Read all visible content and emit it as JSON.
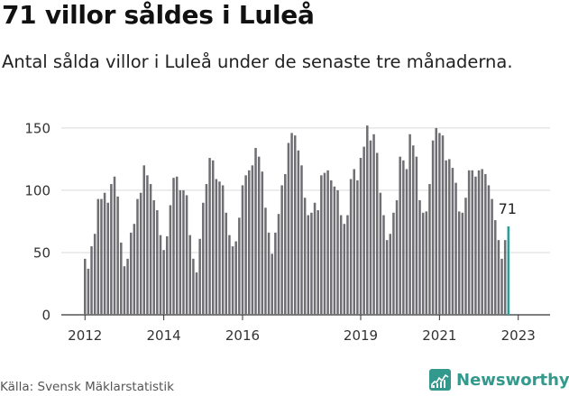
{
  "header": {
    "title": "71 villor såldes i Luleå",
    "subtitle": "Antal sålda villor i Luleå under de senaste tre månaderna."
  },
  "footer": {
    "source": "Källa: Svensk Mäklarstatistik",
    "brand": "Newsworthy"
  },
  "colors": {
    "bar": "#6e6e73",
    "highlight": "#2a9d96",
    "grid": "#d9d9d9",
    "brand": "#33998c"
  },
  "chart_data": {
    "type": "bar",
    "title": "71 villor såldes i Luleå",
    "subtitle": "Antal sålda villor i Luleå under de senaste tre månaderna.",
    "ylim": [
      0,
      155
    ],
    "yticks": [
      0,
      50,
      100,
      150
    ],
    "xtick_labels": [
      {
        "label": "2012",
        "index": 0
      },
      {
        "label": "2014",
        "index": 24
      },
      {
        "label": "2016",
        "index": 48
      },
      {
        "label": "2019",
        "index": 84
      },
      {
        "label": "2021",
        "index": 108
      },
      {
        "label": "2023",
        "index": 132
      }
    ],
    "grid": true,
    "highlight_label": "71",
    "values": [
      45,
      37,
      55,
      65,
      93,
      93,
      98,
      90,
      105,
      111,
      95,
      58,
      39,
      45,
      66,
      73,
      93,
      98,
      120,
      112,
      105,
      92,
      84,
      64,
      52,
      63,
      88,
      110,
      111,
      100,
      100,
      96,
      64,
      45,
      34,
      61,
      90,
      105,
      126,
      124,
      109,
      107,
      104,
      82,
      64,
      55,
      59,
      78,
      104,
      112,
      116,
      120,
      134,
      127,
      115,
      86,
      66,
      49,
      66,
      81,
      104,
      113,
      138,
      146,
      144,
      132,
      120,
      94,
      80,
      82,
      90,
      84,
      112,
      114,
      116,
      108,
      103,
      100,
      80,
      73,
      80,
      109,
      117,
      108,
      126,
      135,
      152,
      140,
      145,
      130,
      98,
      80,
      60,
      65,
      82,
      92,
      127,
      124,
      117,
      145,
      136,
      127,
      92,
      82,
      83,
      105,
      140,
      150,
      146,
      144,
      124,
      125,
      118,
      106,
      83,
      82,
      94,
      116,
      116,
      111,
      116,
      117,
      113,
      104,
      93,
      76,
      60,
      45,
      60,
      71
    ],
    "highlight_index": 129
  }
}
